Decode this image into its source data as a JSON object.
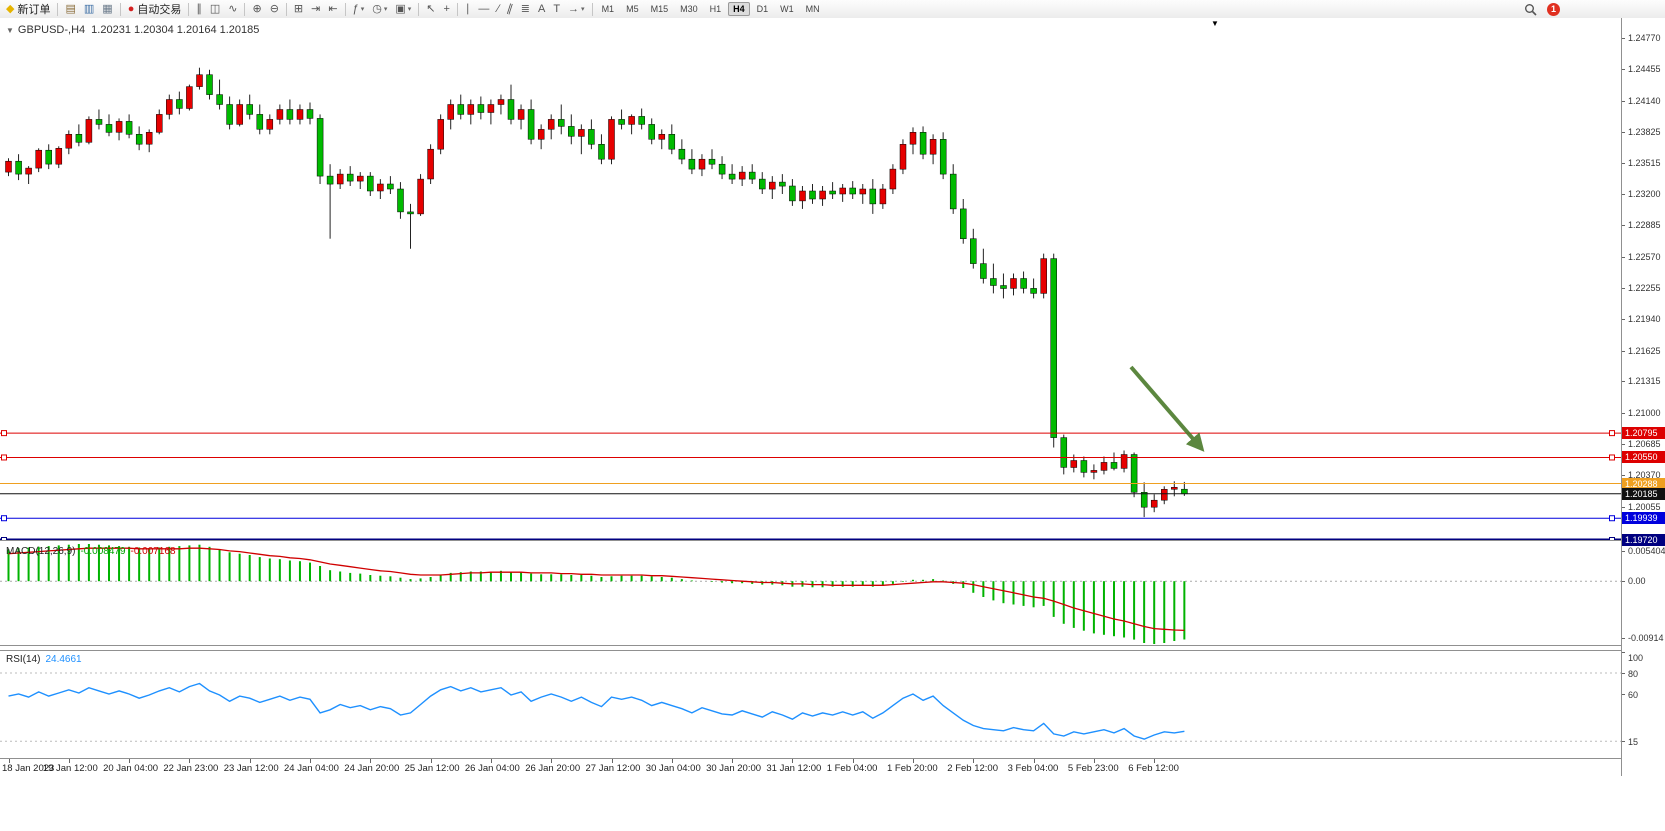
{
  "window_title": "GBPUSD H4 Chart",
  "toolbar": {
    "items": [
      {
        "name": "new-order-button",
        "label": "新订单",
        "glyph": "◆",
        "glyph_color": "#e6b400"
      },
      {
        "sep": true
      },
      {
        "name": "charts-profile-button",
        "glyph": "▤",
        "glyph_color": "#8a6d3b"
      },
      {
        "name": "marketwatch-button",
        "glyph": "▥",
        "glyph_color": "#3c6ea5"
      },
      {
        "name": "data-window-button",
        "glyph": "▦",
        "glyph_color": "#6a7a8a"
      },
      {
        "sep": true
      },
      {
        "name": "autotrading-button",
        "label": "自动交易",
        "glyph": "●",
        "glyph_color": "#d42020"
      },
      {
        "sep": true
      },
      {
        "name": "bar-chart-button",
        "glyph": "∥"
      },
      {
        "name": "candlestick-chart-button",
        "glyph": "◫"
      },
      {
        "name": "line-chart-button",
        "glyph": "∿"
      },
      {
        "sep": true
      },
      {
        "name": "zoom-in-button",
        "glyph": "⊕"
      },
      {
        "name": "zoom-out-button",
        "glyph": "⊖"
      },
      {
        "sep": true
      },
      {
        "name": "tile-windows-button",
        "glyph": "⊞"
      },
      {
        "name": "auto-scroll-button",
        "glyph": "⇥"
      },
      {
        "name": "chart-shift-button",
        "glyph": "⇤"
      },
      {
        "sep": true
      },
      {
        "name": "indicators-button",
        "glyph": "ƒ",
        "dropdown": true
      },
      {
        "name": "periods-button",
        "glyph": "◷",
        "dropdown": true
      },
      {
        "name": "templates-button",
        "glyph": "▣",
        "dropdown": true
      },
      {
        "sep": true
      },
      {
        "name": "cursor-button",
        "glyph": "↖"
      },
      {
        "name": "crosshair-button",
        "glyph": "+"
      },
      {
        "sep": true
      },
      {
        "name": "vertical-line-button",
        "glyph": "∣"
      },
      {
        "name": "horizontal-line-button",
        "glyph": "—"
      },
      {
        "name": "trendline-button",
        "glyph": "∕"
      },
      {
        "name": "equidistant-channel-button",
        "glyph": "∥",
        "tilt": true
      },
      {
        "name": "fibonacci-button",
        "glyph": "≣"
      },
      {
        "name": "text-button",
        "glyph": "A"
      },
      {
        "name": "label-button",
        "glyph": "T"
      },
      {
        "name": "arrows-button",
        "glyph": "→",
        "dropdown": true
      },
      {
        "sep": true
      }
    ],
    "timeframes": [
      "M1",
      "M5",
      "M15",
      "M30",
      "H1",
      "H4",
      "D1",
      "W1",
      "MN"
    ],
    "active_timeframe": "H4",
    "notification_count": "1"
  },
  "chart": {
    "symbol_text": "GBPUSD-,H4",
    "ohlc_text": "1.20231 1.20304 1.20164 1.20185"
  },
  "colors": {
    "arrow": "#4b7b2b",
    "up": "#e60000",
    "down": "#00ba00",
    "wick": "#222222",
    "macd_hist": "#00b300",
    "macd_signal": "#d00000",
    "rsi_line": "#1e90ff"
  },
  "price_axis": {
    "ticks": [
      "1.24770",
      "1.24455",
      "1.24140",
      "1.23825",
      "1.23515",
      "1.23200",
      "1.22885",
      "1.22570",
      "1.22255",
      "1.21940",
      "1.21625",
      "1.21315",
      "1.21000",
      "1.20685",
      "1.20370",
      "1.20055"
    ]
  },
  "hlines": [
    {
      "price": 1.20795,
      "label": "1.20795",
      "color": "#dd0000",
      "width": 1,
      "markers": true
    },
    {
      "price": 1.2055,
      "label": "1.20550",
      "color": "#dd0000",
      "width": 1,
      "markers": true
    },
    {
      "price": 1.20288,
      "label": "1.20288",
      "color": "#efa020",
      "width": 1,
      "markers": false
    },
    {
      "price": 1.20185,
      "label": "1.20185",
      "color": "#111111",
      "width": 1,
      "markers": false
    },
    {
      "price": 1.19939,
      "label": "1.19939",
      "color": "#0000dd",
      "width": 1,
      "markers": true
    },
    {
      "price": 1.1972,
      "label": "1.19720",
      "color": "#000080",
      "width": 3,
      "markers": true
    }
  ],
  "chart_data": {
    "type": "candlestick",
    "symbol": "GBPUSD-",
    "timeframe": "H4",
    "ohlc_current": {
      "open": 1.20231,
      "high": 1.20304,
      "low": 1.20164,
      "close": 1.20185
    },
    "price_range": {
      "top": 1.2497,
      "bottom": 1.1972
    },
    "candles_per_label": 6,
    "time_labels": [
      "18 Jan 2023",
      "19 Jan 12:00",
      "20 Jan 04:00",
      "22 Jan 23:00",
      "23 Jan 12:00",
      "24 Jan 04:00",
      "24 Jan 20:00",
      "25 Jan 12:00",
      "26 Jan 04:00",
      "26 Jan 20:00",
      "27 Jan 12:00",
      "30 Jan 04:00",
      "30 Jan 20:00",
      "31 Jan 12:00",
      "1 Feb 04:00",
      "1 Feb 20:00",
      "2 Feb 12:00",
      "3 Feb 04:00",
      "5 Feb 23:00",
      "6 Feb 12:00"
    ],
    "candles": [
      [
        1.2342,
        1.2356,
        1.2338,
        1.2353
      ],
      [
        1.2353,
        1.236,
        1.2334,
        1.234
      ],
      [
        1.234,
        1.2348,
        1.233,
        1.2346
      ],
      [
        1.2346,
        1.2366,
        1.2342,
        1.2364
      ],
      [
        1.2364,
        1.237,
        1.2345,
        1.235
      ],
      [
        1.235,
        1.2368,
        1.2346,
        1.2366
      ],
      [
        1.2366,
        1.2384,
        1.236,
        1.238
      ],
      [
        1.238,
        1.239,
        1.2368,
        1.2372
      ],
      [
        1.2372,
        1.2398,
        1.237,
        1.2395
      ],
      [
        1.2395,
        1.2405,
        1.2385,
        1.239
      ],
      [
        1.239,
        1.24,
        1.2378,
        1.2382
      ],
      [
        1.2382,
        1.2396,
        1.2374,
        1.2393
      ],
      [
        1.2393,
        1.24,
        1.2376,
        1.238
      ],
      [
        1.238,
        1.2388,
        1.2364,
        1.237
      ],
      [
        1.237,
        1.2385,
        1.2362,
        1.2382
      ],
      [
        1.2382,
        1.2405,
        1.238,
        1.24
      ],
      [
        1.24,
        1.242,
        1.2395,
        1.2415
      ],
      [
        1.2415,
        1.2423,
        1.24,
        1.2406
      ],
      [
        1.2406,
        1.243,
        1.2404,
        1.2428
      ],
      [
        1.2428,
        1.2447,
        1.2425,
        1.244
      ],
      [
        1.244,
        1.2445,
        1.2415,
        1.242
      ],
      [
        1.242,
        1.2435,
        1.2405,
        1.241
      ],
      [
        1.241,
        1.2418,
        1.2385,
        1.239
      ],
      [
        1.239,
        1.2415,
        1.2388,
        1.241
      ],
      [
        1.241,
        1.242,
        1.2395,
        1.24
      ],
      [
        1.24,
        1.241,
        1.238,
        1.2385
      ],
      [
        1.2385,
        1.24,
        1.238,
        1.2395
      ],
      [
        1.2395,
        1.241,
        1.239,
        1.2405
      ],
      [
        1.2405,
        1.2415,
        1.239,
        1.2395
      ],
      [
        1.2395,
        1.241,
        1.239,
        1.2405
      ],
      [
        1.2405,
        1.2412,
        1.239,
        1.2396
      ],
      [
        1.2396,
        1.24,
        1.233,
        1.2338
      ],
      [
        1.2338,
        1.235,
        1.2275,
        1.233
      ],
      [
        1.233,
        1.2345,
        1.2325,
        1.234
      ],
      [
        1.234,
        1.2348,
        1.2328,
        1.2333
      ],
      [
        1.2333,
        1.2342,
        1.2325,
        1.2338
      ],
      [
        1.2338,
        1.2342,
        1.2318,
        1.2323
      ],
      [
        1.2323,
        1.2335,
        1.2315,
        1.233
      ],
      [
        1.233,
        1.2338,
        1.232,
        1.2325
      ],
      [
        1.2325,
        1.2332,
        1.2295,
        1.2302
      ],
      [
        1.2302,
        1.231,
        1.2265,
        1.23
      ],
      [
        1.23,
        1.234,
        1.2298,
        1.2335
      ],
      [
        1.2335,
        1.237,
        1.233,
        1.2365
      ],
      [
        1.2365,
        1.24,
        1.236,
        1.2395
      ],
      [
        1.2395,
        1.2415,
        1.2385,
        1.241
      ],
      [
        1.241,
        1.242,
        1.2395,
        1.24
      ],
      [
        1.24,
        1.2415,
        1.239,
        1.241
      ],
      [
        1.241,
        1.2418,
        1.2395,
        1.2402
      ],
      [
        1.2402,
        1.2415,
        1.239,
        1.241
      ],
      [
        1.241,
        1.242,
        1.24,
        1.2415
      ],
      [
        1.2415,
        1.243,
        1.239,
        1.2395
      ],
      [
        1.2395,
        1.241,
        1.2385,
        1.2405
      ],
      [
        1.2405,
        1.2415,
        1.237,
        1.2375
      ],
      [
        1.2375,
        1.239,
        1.2365,
        1.2385
      ],
      [
        1.2385,
        1.24,
        1.2375,
        1.2395
      ],
      [
        1.2395,
        1.241,
        1.238,
        1.2388
      ],
      [
        1.2388,
        1.24,
        1.237,
        1.2378
      ],
      [
        1.2378,
        1.239,
        1.236,
        1.2385
      ],
      [
        1.2385,
        1.2395,
        1.2365,
        1.237
      ],
      [
        1.237,
        1.238,
        1.235,
        1.2355
      ],
      [
        1.2355,
        1.2398,
        1.235,
        1.2395
      ],
      [
        1.2395,
        1.2405,
        1.2385,
        1.239
      ],
      [
        1.239,
        1.24,
        1.238,
        1.2398
      ],
      [
        1.2398,
        1.2406,
        1.2385,
        1.239
      ],
      [
        1.239,
        1.2396,
        1.237,
        1.2375
      ],
      [
        1.2375,
        1.2385,
        1.2365,
        1.238
      ],
      [
        1.238,
        1.239,
        1.236,
        1.2365
      ],
      [
        1.2365,
        1.2375,
        1.235,
        1.2355
      ],
      [
        1.2355,
        1.2365,
        1.234,
        1.2345
      ],
      [
        1.2345,
        1.236,
        1.2338,
        1.2355
      ],
      [
        1.2355,
        1.2365,
        1.2345,
        1.235
      ],
      [
        1.235,
        1.2358,
        1.2335,
        1.234
      ],
      [
        1.234,
        1.235,
        1.233,
        1.2335
      ],
      [
        1.2335,
        1.2348,
        1.2328,
        1.2342
      ],
      [
        1.2342,
        1.235,
        1.233,
        1.2335
      ],
      [
        1.2335,
        1.2342,
        1.232,
        1.2325
      ],
      [
        1.2325,
        1.2338,
        1.2315,
        1.2332
      ],
      [
        1.2332,
        1.234,
        1.232,
        1.2328
      ],
      [
        1.2328,
        1.2335,
        1.2308,
        1.2313
      ],
      [
        1.2313,
        1.2328,
        1.2305,
        1.2323
      ],
      [
        1.2323,
        1.233,
        1.231,
        1.2315
      ],
      [
        1.2315,
        1.2328,
        1.2308,
        1.2323
      ],
      [
        1.2323,
        1.2332,
        1.2315,
        1.232
      ],
      [
        1.232,
        1.233,
        1.2312,
        1.2326
      ],
      [
        1.2326,
        1.2333,
        1.2315,
        1.232
      ],
      [
        1.232,
        1.233,
        1.231,
        1.2325
      ],
      [
        1.2325,
        1.2335,
        1.23,
        1.231
      ],
      [
        1.231,
        1.233,
        1.2305,
        1.2325
      ],
      [
        1.2325,
        1.235,
        1.232,
        1.2345
      ],
      [
        1.2345,
        1.2375,
        1.234,
        1.237
      ],
      [
        1.237,
        1.2387,
        1.236,
        1.2382
      ],
      [
        1.2382,
        1.2388,
        1.2355,
        1.236
      ],
      [
        1.236,
        1.238,
        1.235,
        1.2375
      ],
      [
        1.2375,
        1.2382,
        1.2335,
        1.234
      ],
      [
        1.234,
        1.235,
        1.23,
        1.2305
      ],
      [
        1.2305,
        1.2315,
        1.227,
        1.2275
      ],
      [
        1.2275,
        1.2285,
        1.2245,
        1.225
      ],
      [
        1.225,
        1.2265,
        1.223,
        1.2235
      ],
      [
        1.2235,
        1.225,
        1.222,
        1.2228
      ],
      [
        1.2228,
        1.224,
        1.2215,
        1.2225
      ],
      [
        1.2225,
        1.224,
        1.2218,
        1.2235
      ],
      [
        1.2235,
        1.2242,
        1.222,
        1.2225
      ],
      [
        1.2225,
        1.2235,
        1.2215,
        1.222
      ],
      [
        1.222,
        1.226,
        1.2215,
        1.2255
      ],
      [
        1.2255,
        1.226,
        1.2065,
        1.2075
      ],
      [
        1.2075,
        1.2078,
        1.2038,
        1.2045
      ],
      [
        1.2045,
        1.2058,
        1.204,
        1.2052
      ],
      [
        1.2052,
        1.2056,
        1.2035,
        1.204
      ],
      [
        1.204,
        1.2048,
        1.2033,
        1.2042
      ],
      [
        1.2042,
        1.2056,
        1.2038,
        1.205
      ],
      [
        1.205,
        1.206,
        1.2042,
        1.2044
      ],
      [
        1.2044,
        1.2062,
        1.204,
        1.2058
      ],
      [
        1.2058,
        1.206,
        1.2015,
        1.202
      ],
      [
        1.202,
        1.203,
        1.1995,
        1.2005
      ],
      [
        1.2005,
        1.2018,
        1.2,
        1.2012
      ],
      [
        1.2012,
        1.2026,
        1.2008,
        1.2023
      ],
      [
        1.2023,
        1.2031,
        1.2016,
        1.2025
      ],
      [
        1.20231,
        1.20304,
        1.20164,
        1.20185
      ]
    ]
  },
  "macd": {
    "label": "MACD(12,26,9)",
    "value_main": "-0.008479",
    "value_signal": "-0.007168",
    "axis_max_label": "0.005404",
    "axis_zero_label": "0.00",
    "axis_min_label": "-0.00914",
    "max": 0.005404,
    "min": -0.00914,
    "histogram": [
      0.0046,
      0.0048,
      0.0049,
      0.005,
      0.0051,
      0.0052,
      0.0053,
      0.0054,
      0.0054,
      0.0053,
      0.0052,
      0.0051,
      0.005,
      0.0049,
      0.0048,
      0.0049,
      0.005,
      0.0051,
      0.0052,
      0.0053,
      0.005,
      0.0046,
      0.0042,
      0.004,
      0.0038,
      0.0035,
      0.0033,
      0.0032,
      0.003,
      0.0029,
      0.0027,
      0.0022,
      0.0016,
      0.0014,
      0.0012,
      0.0011,
      0.0009,
      0.0008,
      0.0007,
      0.0005,
      0.0003,
      0.0004,
      0.0006,
      0.0009,
      0.0012,
      0.0013,
      0.0014,
      0.0014,
      0.0014,
      0.0015,
      0.0014,
      0.0013,
      0.0011,
      0.001,
      0.001,
      0.001,
      0.0009,
      0.0009,
      0.0008,
      0.0006,
      0.0007,
      0.0008,
      0.0008,
      0.0008,
      0.0007,
      0.0006,
      0.0005,
      0.0003,
      0.0001,
      0.0,
      -0.0001,
      -0.0002,
      -0.0003,
      -0.0003,
      -0.0004,
      -0.0005,
      -0.0005,
      -0.0006,
      -0.0008,
      -0.0008,
      -0.0009,
      -0.0009,
      -0.0008,
      -0.0008,
      -0.0008,
      -0.0007,
      -0.0008,
      -0.0007,
      -0.0004,
      -0.0001,
      0.0002,
      0.0002,
      0.0003,
      0.0001,
      -0.0004,
      -0.001,
      -0.0017,
      -0.0023,
      -0.0028,
      -0.0032,
      -0.0034,
      -0.0036,
      -0.0038,
      -0.0036,
      -0.0052,
      -0.0062,
      -0.0068,
      -0.0072,
      -0.0076,
      -0.0078,
      -0.008,
      -0.0082,
      -0.0085,
      -0.009,
      -0.00914,
      -0.009,
      -0.0087,
      -0.008479
    ],
    "signal": [
      0.004,
      0.0041,
      0.0042,
      0.0043,
      0.0044,
      0.0045,
      0.0046,
      0.0047,
      0.0048,
      0.0048,
      0.0048,
      0.0048,
      0.0048,
      0.0047,
      0.0047,
      0.0047,
      0.0047,
      0.0047,
      0.0048,
      0.0048,
      0.0047,
      0.0046,
      0.0044,
      0.0043,
      0.0041,
      0.0039,
      0.0037,
      0.0036,
      0.0034,
      0.0033,
      0.0031,
      0.0028,
      0.0025,
      0.0023,
      0.0021,
      0.0019,
      0.0017,
      0.0015,
      0.0014,
      0.0012,
      0.001,
      0.0009,
      0.0009,
      0.0009,
      0.001,
      0.0011,
      0.0012,
      0.0012,
      0.0013,
      0.0013,
      0.0013,
      0.0013,
      0.0012,
      0.0012,
      0.0012,
      0.0011,
      0.0011,
      0.001,
      0.001,
      0.0009,
      0.0009,
      0.0009,
      0.0009,
      0.0009,
      0.0008,
      0.0008,
      0.0007,
      0.0006,
      0.0005,
      0.0004,
      0.0003,
      0.0002,
      0.0001,
      0.0,
      -0.0001,
      -0.0002,
      -0.0002,
      -0.0003,
      -0.0004,
      -0.0004,
      -0.0005,
      -0.0005,
      -0.0006,
      -0.0006,
      -0.0006,
      -0.0006,
      -0.0006,
      -0.0006,
      -0.0005,
      -0.0004,
      -0.0003,
      -0.0002,
      -0.0001,
      -0.0001,
      -0.0002,
      -0.0003,
      -0.0005,
      -0.0008,
      -0.0011,
      -0.0014,
      -0.0017,
      -0.002,
      -0.0023,
      -0.0025,
      -0.0029,
      -0.0034,
      -0.0039,
      -0.0043,
      -0.0047,
      -0.0051,
      -0.0055,
      -0.0058,
      -0.0062,
      -0.0066,
      -0.0069,
      -0.007,
      -0.0071,
      -0.007168
    ]
  },
  "rsi": {
    "label": "RSI(14)",
    "value": "24.4661",
    "axis_labels": [
      "100",
      "80",
      "60",
      "15"
    ],
    "levels": [
      80,
      15
    ],
    "min": 0,
    "max": 100,
    "values": [
      58,
      60,
      57,
      62,
      58,
      61,
      64,
      61,
      66,
      63,
      60,
      63,
      60,
      56,
      59,
      63,
      66,
      62,
      67,
      70,
      63,
      59,
      53,
      58,
      56,
      52,
      55,
      58,
      54,
      57,
      55,
      42,
      45,
      50,
      47,
      49,
      45,
      48,
      46,
      40,
      42,
      50,
      58,
      64,
      67,
      63,
      66,
      62,
      64,
      66,
      59,
      62,
      53,
      57,
      60,
      57,
      53,
      57,
      52,
      48,
      57,
      55,
      57,
      54,
      49,
      52,
      49,
      46,
      42,
      47,
      44,
      41,
      40,
      44,
      41,
      38,
      43,
      40,
      36,
      42,
      39,
      42,
      40,
      43,
      40,
      43,
      37,
      42,
      49,
      56,
      60,
      54,
      58,
      49,
      42,
      35,
      30,
      27,
      26,
      25,
      28,
      26,
      25,
      32,
      22,
      20,
      24,
      22,
      24,
      26,
      23,
      27,
      20,
      17,
      21,
      24,
      23,
      24.4661
    ]
  }
}
